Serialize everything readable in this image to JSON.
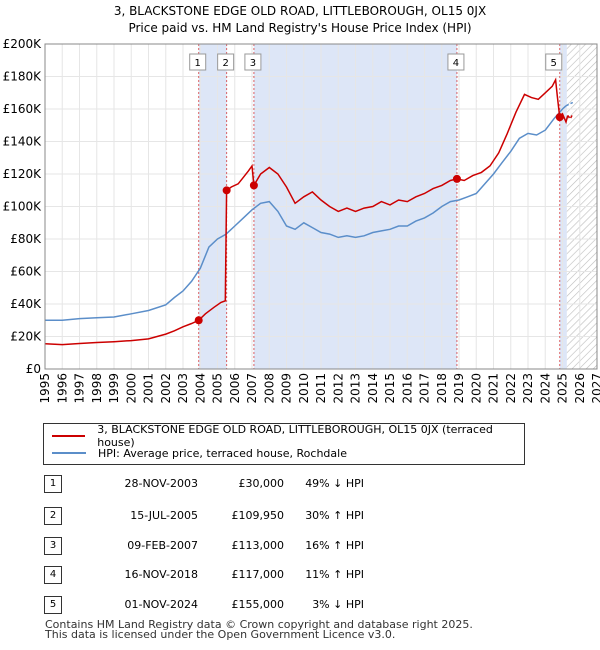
{
  "chart_data": {
    "type": "line",
    "title": "3, BLACKSTONE EDGE OLD ROAD, LITTLEBOROUGH, OL15 0JX",
    "subtitle": "Price paid vs. HM Land Registry's House Price Index (HPI)",
    "xlabel": "",
    "ylabel": "",
    "xlim": [
      1995,
      2027
    ],
    "ylim": [
      0,
      200000
    ],
    "x_ticks": [
      "1995",
      "1996",
      "1997",
      "1998",
      "1999",
      "2000",
      "2001",
      "2002",
      "2003",
      "2004",
      "2005",
      "2006",
      "2007",
      "2008",
      "2009",
      "2010",
      "2011",
      "2012",
      "2013",
      "2014",
      "2015",
      "2016",
      "2017",
      "2018",
      "2019",
      "2020",
      "2021",
      "2022",
      "2023",
      "2024",
      "2025",
      "2026",
      "2027"
    ],
    "y_ticks": [
      {
        "value": 0,
        "label": "£0"
      },
      {
        "value": 20000,
        "label": "£20K"
      },
      {
        "value": 40000,
        "label": "£40K"
      },
      {
        "value": 60000,
        "label": "£60K"
      },
      {
        "value": 80000,
        "label": "£80K"
      },
      {
        "value": 100000,
        "label": "£100K"
      },
      {
        "value": 120000,
        "label": "£120K"
      },
      {
        "value": 140000,
        "label": "£140K"
      },
      {
        "value": 160000,
        "label": "£160K"
      },
      {
        "value": 180000,
        "label": "£180K"
      },
      {
        "value": 200000,
        "label": "£200K"
      }
    ],
    "hpi_forecast_start": 2025.25,
    "series": [
      {
        "name": "3, BLACKSTONE EDGE OLD ROAD, LITTLEBOROUGH, OL15 0JX (terraced house)",
        "color": "#cc0000",
        "points": [
          [
            1995.0,
            15500
          ],
          [
            1996.0,
            15000
          ],
          [
            1997.0,
            15700
          ],
          [
            1998.0,
            16300
          ],
          [
            1999.0,
            16800
          ],
          [
            2000.0,
            17500
          ],
          [
            2001.0,
            18500
          ],
          [
            2002.0,
            21500
          ],
          [
            2002.5,
            23500
          ],
          [
            2003.0,
            26000
          ],
          [
            2003.5,
            28000
          ],
          [
            2003.91,
            30000
          ],
          [
            2004.3,
            34000
          ],
          [
            2004.8,
            38000
          ],
          [
            2005.2,
            41000
          ],
          [
            2005.45,
            42000
          ],
          [
            2005.53,
            109950
          ],
          [
            2005.8,
            112000
          ],
          [
            2006.2,
            114000
          ],
          [
            2006.5,
            118000
          ],
          [
            2006.8,
            122000
          ],
          [
            2007.0,
            125000
          ],
          [
            2007.11,
            113000
          ],
          [
            2007.5,
            120000
          ],
          [
            2008.0,
            124000
          ],
          [
            2008.5,
            120000
          ],
          [
            2009.0,
            112000
          ],
          [
            2009.5,
            102000
          ],
          [
            2010.0,
            106000
          ],
          [
            2010.5,
            109000
          ],
          [
            2011.0,
            104000
          ],
          [
            2011.5,
            100000
          ],
          [
            2012.0,
            97000
          ],
          [
            2012.5,
            99000
          ],
          [
            2013.0,
            97000
          ],
          [
            2013.5,
            99000
          ],
          [
            2014.0,
            100000
          ],
          [
            2014.5,
            103000
          ],
          [
            2015.0,
            101000
          ],
          [
            2015.5,
            104000
          ],
          [
            2016.0,
            103000
          ],
          [
            2016.5,
            106000
          ],
          [
            2017.0,
            108000
          ],
          [
            2017.5,
            111000
          ],
          [
            2018.0,
            113000
          ],
          [
            2018.5,
            116000
          ],
          [
            2018.88,
            117000
          ],
          [
            2019.3,
            116000
          ],
          [
            2019.8,
            119000
          ],
          [
            2020.3,
            121000
          ],
          [
            2020.8,
            125000
          ],
          [
            2021.3,
            133000
          ],
          [
            2021.8,
            145000
          ],
          [
            2022.3,
            158000
          ],
          [
            2022.8,
            169000
          ],
          [
            2023.2,
            167000
          ],
          [
            2023.6,
            166000
          ],
          [
            2024.0,
            170000
          ],
          [
            2024.4,
            174000
          ],
          [
            2024.6,
            178000
          ],
          [
            2024.7,
            168000
          ],
          [
            2024.84,
            155000
          ],
          [
            2025.0,
            157000
          ],
          [
            2025.2,
            152000
          ],
          [
            2025.3,
            156000
          ]
        ],
        "forecast": [
          [
            2025.3,
            156000
          ],
          [
            2025.45,
            154000
          ],
          [
            2025.6,
            157000
          ]
        ]
      },
      {
        "name": "HPI: Average price, terraced house, Rochdale",
        "color": "#5b8ec9",
        "points": [
          [
            1995.0,
            30000
          ],
          [
            1996.0,
            30000
          ],
          [
            1997.0,
            31000
          ],
          [
            1998.0,
            31500
          ],
          [
            1999.0,
            32000
          ],
          [
            2000.0,
            34000
          ],
          [
            2001.0,
            36000
          ],
          [
            2002.0,
            39500
          ],
          [
            2002.5,
            44000
          ],
          [
            2003.0,
            48000
          ],
          [
            2003.5,
            54000
          ],
          [
            2004.0,
            62000
          ],
          [
            2004.5,
            75000
          ],
          [
            2005.0,
            80000
          ],
          [
            2005.5,
            83000
          ],
          [
            2006.0,
            88000
          ],
          [
            2006.5,
            93000
          ],
          [
            2007.0,
            98000
          ],
          [
            2007.5,
            102000
          ],
          [
            2008.0,
            103000
          ],
          [
            2008.5,
            97000
          ],
          [
            2009.0,
            88000
          ],
          [
            2009.5,
            86000
          ],
          [
            2010.0,
            90000
          ],
          [
            2010.5,
            87000
          ],
          [
            2011.0,
            84000
          ],
          [
            2011.5,
            83000
          ],
          [
            2012.0,
            81000
          ],
          [
            2012.5,
            82000
          ],
          [
            2013.0,
            81000
          ],
          [
            2013.5,
            82000
          ],
          [
            2014.0,
            84000
          ],
          [
            2014.5,
            85000
          ],
          [
            2015.0,
            86000
          ],
          [
            2015.5,
            88000
          ],
          [
            2016.0,
            88000
          ],
          [
            2016.5,
            91000
          ],
          [
            2017.0,
            93000
          ],
          [
            2017.5,
            96000
          ],
          [
            2018.0,
            100000
          ],
          [
            2018.5,
            103000
          ],
          [
            2019.0,
            104000
          ],
          [
            2019.5,
            106000
          ],
          [
            2020.0,
            108000
          ],
          [
            2020.5,
            114000
          ],
          [
            2021.0,
            120000
          ],
          [
            2021.5,
            127000
          ],
          [
            2022.0,
            134000
          ],
          [
            2022.5,
            142000
          ],
          [
            2023.0,
            145000
          ],
          [
            2023.5,
            144000
          ],
          [
            2024.0,
            147000
          ],
          [
            2024.5,
            154000
          ],
          [
            2025.0,
            160000
          ],
          [
            2025.2,
            162000
          ]
        ],
        "forecast": [
          [
            2025.2,
            162000
          ],
          [
            2025.4,
            163000
          ],
          [
            2025.6,
            164000
          ]
        ]
      }
    ],
    "transactions": [
      {
        "num": "1",
        "date": "28-NOV-2003",
        "year": 2003.91,
        "price": 30000,
        "price_label": "£30,000",
        "hpi": "49% ↓ HPI"
      },
      {
        "num": "2",
        "date": "15-JUL-2005",
        "year": 2005.53,
        "price": 109950,
        "price_label": "£109,950",
        "hpi": "30% ↑ HPI"
      },
      {
        "num": "3",
        "date": "09-FEB-2007",
        "year": 2007.11,
        "price": 113000,
        "price_label": "£113,000",
        "hpi": "16% ↑ HPI"
      },
      {
        "num": "4",
        "date": "16-NOV-2018",
        "year": 2018.88,
        "price": 117000,
        "price_label": "£117,000",
        "hpi": "11% ↑ HPI"
      },
      {
        "num": "5",
        "date": "01-NOV-2024",
        "year": 2024.84,
        "price": 155000,
        "price_label": "£155,000",
        "hpi": "3% ↓ HPI"
      }
    ],
    "colors": {
      "red": "#cc0000",
      "blue": "#5b8ec9",
      "shade": "#dde6f7",
      "grid": "#e6e6e6"
    }
  },
  "footer": {
    "line1": "Contains HM Land Registry data © Crown copyright and database right 2025.",
    "line2": "This data is licensed under the Open Government Licence v3.0."
  }
}
